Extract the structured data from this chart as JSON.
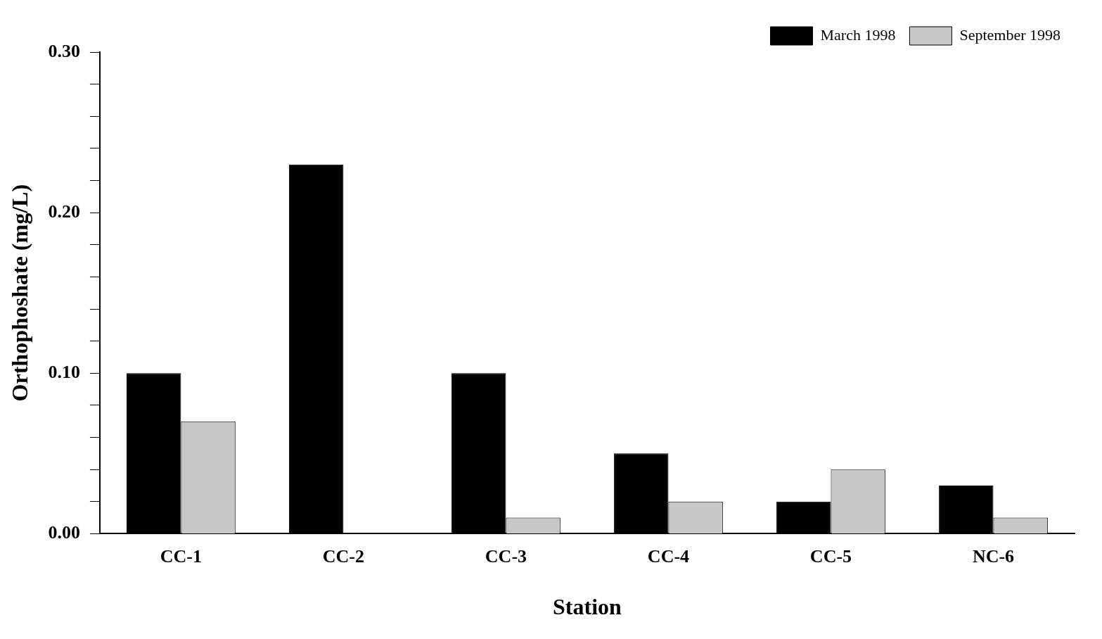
{
  "chart_data": {
    "type": "bar",
    "xlabel": "Station",
    "ylabel": "Orthophoshate (mg/L)",
    "categories": [
      "CC-1",
      "CC-2",
      "CC-3",
      "CC-4",
      "CC-5",
      "NC-6"
    ],
    "series": [
      {
        "name": "March 1998",
        "color": "#000000",
        "values": [
          0.1,
          0.23,
          0.1,
          0.05,
          0.02,
          0.03
        ]
      },
      {
        "name": "September 1998",
        "color": "#c8c8c8",
        "values": [
          0.07,
          0,
          0.01,
          0.02,
          0.04,
          0.01
        ]
      }
    ],
    "ylim": [
      0,
      0.3
    ],
    "yticks": [
      {
        "value": 0,
        "label": "0.00"
      },
      {
        "value": 0.02,
        "label": null
      },
      {
        "value": 0.04,
        "label": null
      },
      {
        "value": 0.06,
        "label": null
      },
      {
        "value": 0.08,
        "label": null
      },
      {
        "value": 0.1,
        "label": "0.10"
      },
      {
        "value": 0.12,
        "label": null
      },
      {
        "value": 0.14,
        "label": null
      },
      {
        "value": 0.16,
        "label": null
      },
      {
        "value": 0.18,
        "label": null
      },
      {
        "value": 0.2,
        "label": "0.20"
      },
      {
        "value": 0.22,
        "label": null
      },
      {
        "value": 0.24,
        "label": null
      },
      {
        "value": 0.26,
        "label": null
      },
      {
        "value": 0.28,
        "label": null
      },
      {
        "value": 0.3,
        "label": "0.30"
      }
    ],
    "grid": false,
    "legend": "top right"
  }
}
